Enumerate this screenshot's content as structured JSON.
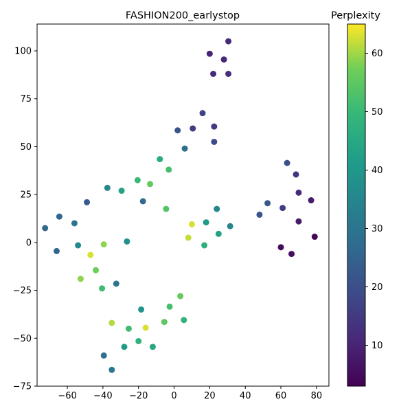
{
  "chart_data": {
    "type": "scatter",
    "title": "FASHION200_earlystop",
    "xlabel": "",
    "ylabel": "",
    "xlim": [
      -77,
      87
    ],
    "ylim": [
      -75,
      114
    ],
    "x_ticks": [
      -60,
      -40,
      -20,
      0,
      20,
      40,
      60,
      80
    ],
    "y_ticks": [
      -75,
      -50,
      -25,
      0,
      25,
      50,
      75,
      100
    ],
    "grid": false,
    "colorbar": {
      "label": "Perplexity",
      "colormap": "viridis",
      "range": [
        3,
        65
      ],
      "ticks": [
        10,
        20,
        30,
        40,
        50,
        60
      ]
    },
    "points": [
      {
        "x": 30.5,
        "y": 105,
        "c": 11
      },
      {
        "x": 20,
        "y": 98.5,
        "c": 10
      },
      {
        "x": 28,
        "y": 95.5,
        "c": 11
      },
      {
        "x": 22,
        "y": 88,
        "c": 12
      },
      {
        "x": 30.5,
        "y": 88,
        "c": 12
      },
      {
        "x": 16,
        "y": 67.5,
        "c": 17
      },
      {
        "x": 10.5,
        "y": 59.5,
        "c": 15
      },
      {
        "x": 22.5,
        "y": 60.5,
        "c": 15
      },
      {
        "x": 2,
        "y": 58.5,
        "c": 21
      },
      {
        "x": 22.5,
        "y": 52.5,
        "c": 19
      },
      {
        "x": 6,
        "y": 49,
        "c": 28
      },
      {
        "x": -8,
        "y": 43.5,
        "c": 46
      },
      {
        "x": -3,
        "y": 38,
        "c": 52
      },
      {
        "x": 63.5,
        "y": 41.5,
        "c": 20
      },
      {
        "x": 68.5,
        "y": 35.5,
        "c": 14
      },
      {
        "x": 70,
        "y": 26,
        "c": 11
      },
      {
        "x": 77,
        "y": 22,
        "c": 8
      },
      {
        "x": 52.5,
        "y": 20.5,
        "c": 22
      },
      {
        "x": 61,
        "y": 18,
        "c": 16
      },
      {
        "x": 48,
        "y": 14.5,
        "c": 21
      },
      {
        "x": 70,
        "y": 11,
        "c": 8
      },
      {
        "x": 79,
        "y": 3,
        "c": 4
      },
      {
        "x": 60,
        "y": -2.5,
        "c": 5
      },
      {
        "x": 66,
        "y": -6,
        "c": 6
      },
      {
        "x": -37.5,
        "y": 28.5,
        "c": 35
      },
      {
        "x": -29.5,
        "y": 27,
        "c": 43
      },
      {
        "x": -20.5,
        "y": 32.5,
        "c": 50
      },
      {
        "x": -13.5,
        "y": 30.5,
        "c": 56
      },
      {
        "x": -49,
        "y": 21,
        "c": 23
      },
      {
        "x": -17.5,
        "y": 21.5,
        "c": 27
      },
      {
        "x": -4.5,
        "y": 17.5,
        "c": 54
      },
      {
        "x": -64.5,
        "y": 13.5,
        "c": 26
      },
      {
        "x": -56,
        "y": 10,
        "c": 30
      },
      {
        "x": -72.5,
        "y": 7.5,
        "c": 27
      },
      {
        "x": 24,
        "y": 17.5,
        "c": 36
      },
      {
        "x": 18,
        "y": 10.5,
        "c": 41
      },
      {
        "x": 10,
        "y": 9.5,
        "c": 63
      },
      {
        "x": 31.5,
        "y": 8.5,
        "c": 35
      },
      {
        "x": 25,
        "y": 4.5,
        "c": 43
      },
      {
        "x": 8,
        "y": 2.5,
        "c": 62
      },
      {
        "x": 17,
        "y": -1.5,
        "c": 47
      },
      {
        "x": -26.5,
        "y": 0.5,
        "c": 38
      },
      {
        "x": -39.5,
        "y": -1,
        "c": 59
      },
      {
        "x": -54,
        "y": -1.5,
        "c": 36
      },
      {
        "x": -66,
        "y": -4.5,
        "c": 26
      },
      {
        "x": -47,
        "y": -6.5,
        "c": 63
      },
      {
        "x": -44,
        "y": -14.5,
        "c": 57
      },
      {
        "x": -52.5,
        "y": -19,
        "c": 59
      },
      {
        "x": -32.5,
        "y": -21.5,
        "c": 30
      },
      {
        "x": -40.5,
        "y": -24,
        "c": 51
      },
      {
        "x": 3.5,
        "y": -28,
        "c": 56
      },
      {
        "x": -2.5,
        "y": -33.5,
        "c": 52
      },
      {
        "x": -18.5,
        "y": -35,
        "c": 39
      },
      {
        "x": -35,
        "y": -42,
        "c": 61
      },
      {
        "x": -5.5,
        "y": -41.5,
        "c": 55
      },
      {
        "x": 5.5,
        "y": -40.5,
        "c": 48
      },
      {
        "x": -25.5,
        "y": -45,
        "c": 51
      },
      {
        "x": -16,
        "y": -44.5,
        "c": 63
      },
      {
        "x": -20,
        "y": -51.5,
        "c": 48
      },
      {
        "x": -28,
        "y": -54.5,
        "c": 41
      },
      {
        "x": -12,
        "y": -54.5,
        "c": 45
      },
      {
        "x": -39.5,
        "y": -59,
        "c": 29
      },
      {
        "x": -35,
        "y": -66.5,
        "c": 31
      }
    ]
  }
}
